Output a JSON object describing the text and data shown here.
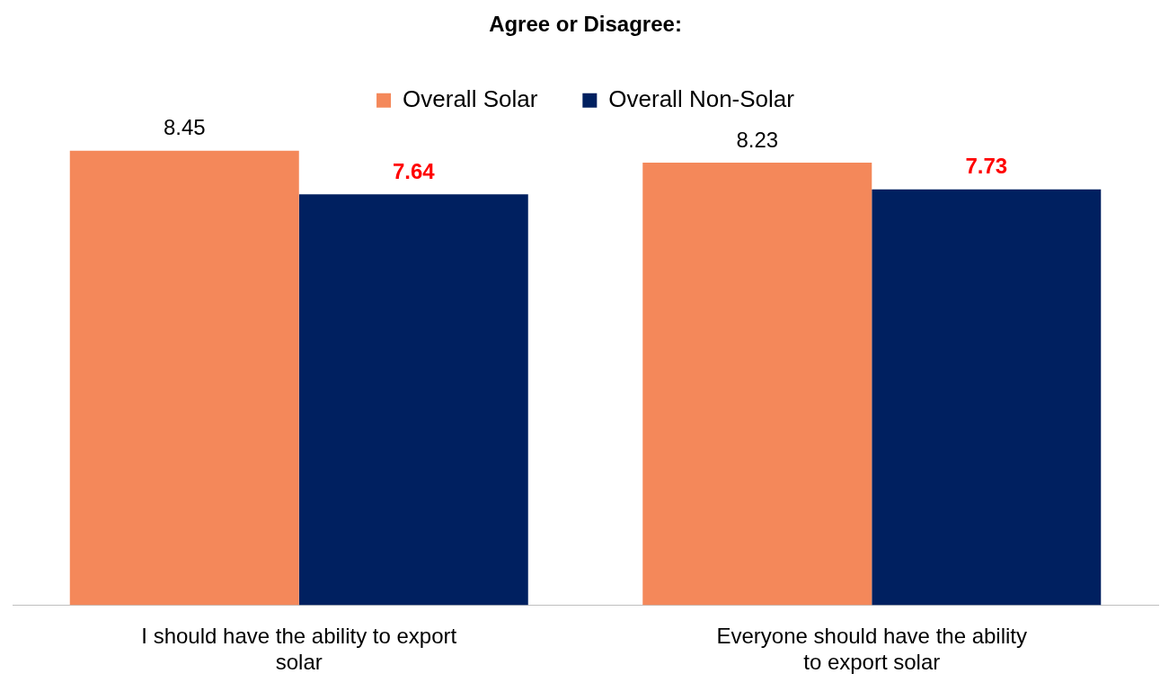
{
  "chart_data": {
    "type": "bar",
    "title": "Agree or Disagree:",
    "categories": [
      "I should have the ability to export solar",
      "Everyone should have the ability to export solar"
    ],
    "series": [
      {
        "name": "Overall Solar",
        "color": "#f4885a",
        "values": [
          8.45,
          8.23
        ]
      },
      {
        "name": "Overall Non-Solar",
        "color": "#002060",
        "values": [
          7.64,
          7.73
        ]
      }
    ],
    "tick_labels": "x",
    "grid": false,
    "legend": "top",
    "data_labels": true
  }
}
